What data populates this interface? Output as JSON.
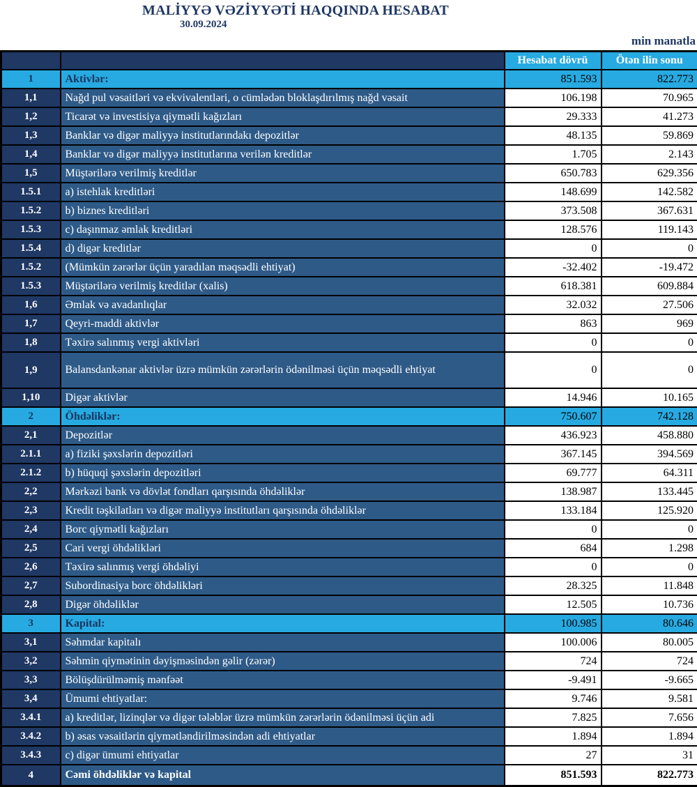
{
  "page": {
    "title": "MALİYYƏ VƏZİYYƏTİ HAQQINDA HESABAT",
    "date": "30.09.2024",
    "unit_note": "min manatla"
  },
  "colors": {
    "accent_cyan": "#27AAE1",
    "navy": "#1F3864",
    "steel_blue": "#2E5A87",
    "border_black": "#000000"
  },
  "table": {
    "columns": [
      "Hesabat dövrü",
      "Ötən ilin sonu"
    ],
    "rows": [
      {
        "no": "1",
        "label": "Aktivlər:",
        "current": "851.593",
        "previous": "822.773",
        "type": "section"
      },
      {
        "no": "1,1",
        "label": "Nağd pul vəsaitləri və  ekvivalentləri, o cümlədən bloklaşdırılmış nağd vəsait",
        "current": "106.198",
        "previous": "70.965",
        "type": "item"
      },
      {
        "no": "1,2",
        "label": "Ticarət və investisiya qiymətli kağızları",
        "current": "29.333",
        "previous": "41.273",
        "type": "item"
      },
      {
        "no": "1,3",
        "label": "Banklar və digər maliyyə institutlarındakı depozitlər",
        "current": "48.135",
        "previous": "59.869",
        "type": "item"
      },
      {
        "no": "1,4",
        "label": "Banklar və digər maliyyə institutlarına verilən kreditlər",
        "current": "1.705",
        "previous": "2.143",
        "type": "item"
      },
      {
        "no": "1,5",
        "label": "Müştərilərə verilmiş kreditlər",
        "current": "650.783",
        "previous": "629.356",
        "type": "item"
      },
      {
        "no": "1.5.1",
        "label": "a) istehlak kreditləri",
        "current": "148.699",
        "previous": "142.582",
        "type": "item"
      },
      {
        "no": "1.5.2",
        "label": "b) biznes kreditləri",
        "current": "373.508",
        "previous": "367.631",
        "type": "item"
      },
      {
        "no": "1.5.3",
        "label": "c) daşınmaz əmlak kreditləri",
        "current": "128.576",
        "previous": "119.143",
        "type": "item"
      },
      {
        "no": "1.5.4",
        "label": "d) digər kreditlər",
        "current": "0",
        "previous": "0",
        "type": "item"
      },
      {
        "no": "1.5.2",
        "label": "(Mümkün zərərlər üçün yaradılan məqsədli ehtiyat)",
        "current": "-32.402",
        "previous": "-19.472",
        "type": "item"
      },
      {
        "no": "1.5.3",
        "label": "Müştərilərə verilmiş kreditlər (xalis)",
        "current": "618.381",
        "previous": "609.884",
        "type": "item"
      },
      {
        "no": "1,6",
        "label": "Əmlak və avadanlıqlar",
        "current": "32.032",
        "previous": "27.506",
        "type": "item"
      },
      {
        "no": "1,7",
        "label": "Qeyri-maddi aktivlər",
        "current": "863",
        "previous": "969",
        "type": "item"
      },
      {
        "no": "1,8",
        "label": "Təxirə salınmış vergi aktivləri",
        "current": "0",
        "previous": "0",
        "type": "item"
      },
      {
        "no": "1,9",
        "label": "Balansdankənar aktivlər üzrə mümkün zərərlərin ödənilməsi üçün məqsədli ehtiyat",
        "current": "0",
        "previous": "0",
        "type": "tall"
      },
      {
        "no": "1,10",
        "label": "Digər aktivlər",
        "current": "14.946",
        "previous": "10.165",
        "type": "item"
      },
      {
        "no": "2",
        "label": "Öhdəliklər:",
        "current": "750.607",
        "previous": "742.128",
        "type": "section"
      },
      {
        "no": "2,1",
        "label": "Depozitlər",
        "current": "436.923",
        "previous": "458.880",
        "type": "item"
      },
      {
        "no": "2.1.1",
        "label": "a) fiziki şəxslərin depozitləri",
        "current": "367.145",
        "previous": "394.569",
        "type": "item"
      },
      {
        "no": "2.1.2",
        "label": "b) hüquqi şəxslərin depozitləri",
        "current": "69.777",
        "previous": "64.311",
        "type": "item"
      },
      {
        "no": "2,2",
        "label": "Mərkəzi bank və dövlət fondları qarşısında öhdəliklər",
        "current": "138.987",
        "previous": "133.445",
        "type": "item"
      },
      {
        "no": "2,3",
        "label": "Kredit təşkilatları və digər maliyyə institutları qarşısında öhdəliklər",
        "current": "133.184",
        "previous": "125.920",
        "type": "item"
      },
      {
        "no": "2,4",
        "label": "Borc qiymətli kağızları",
        "current": "0",
        "previous": "0",
        "type": "item"
      },
      {
        "no": "2,5",
        "label": "Cari vergi öhdəlikləri",
        "current": "684",
        "previous": "1.298",
        "type": "item"
      },
      {
        "no": "2,6",
        "label": "Təxirə salınmış vergi öhdəliyi",
        "current": "0",
        "previous": "0",
        "type": "item"
      },
      {
        "no": "2,7",
        "label": "Subordinasiya borc öhdəlikləri",
        "current": "28.325",
        "previous": "11.848",
        "type": "item"
      },
      {
        "no": "2,8",
        "label": "Digər öhdəliklər",
        "current": "12.505",
        "previous": "10.736",
        "type": "item"
      },
      {
        "no": "3",
        "label": "Kapital:",
        "current": "100.985",
        "previous": "80.646",
        "type": "section"
      },
      {
        "no": "3,1",
        "label": "Səhmdar kapitalı",
        "current": "100.006",
        "previous": "80.005",
        "type": "item"
      },
      {
        "no": "3,2",
        "label": "Səhmin qiymətinin dəyişməsindən gəlir (zərər)",
        "current": "724",
        "previous": "724",
        "type": "item"
      },
      {
        "no": "3,3",
        "label": "Bölüşdürülməmiş mənfəət",
        "current": "-9.491",
        "previous": "-9.665",
        "type": "item"
      },
      {
        "no": "3,4",
        "label": "Ümumi ehtiyatlar:",
        "current": "9.746",
        "previous": "9.581",
        "type": "item"
      },
      {
        "no": "3.4.1",
        "label": "a) kreditlər, lizinqlər və digər tələblər üzrə mümkün zərərlərin ödənilməsi üçün adi",
        "current": "7.825",
        "previous": "7.656",
        "type": "item"
      },
      {
        "no": "3.4.2",
        "label": "b) əsas vəsaitlərin qiymətləndirilməsindən adi ehtiyatlar",
        "current": "1.894",
        "previous": "1.894",
        "type": "item"
      },
      {
        "no": "3.4.3",
        "label": "c) digər ümumi ehtiyatlar",
        "current": "27",
        "previous": "31",
        "type": "item"
      },
      {
        "no": "4",
        "label": "Cəmi öhdəliklər və kapital",
        "current": "851.593",
        "previous": "822.773",
        "type": "total"
      }
    ]
  }
}
